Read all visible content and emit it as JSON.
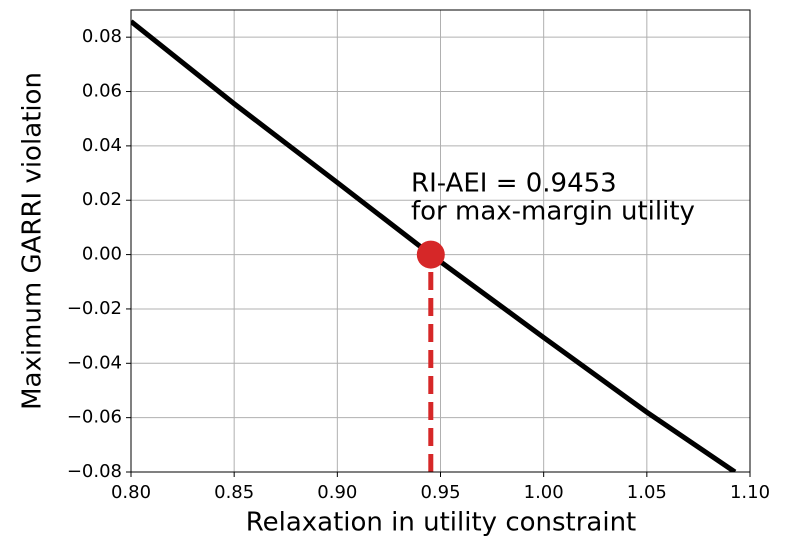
{
  "chart_data": {
    "type": "line",
    "xlabel": "Relaxation in utility constraint",
    "ylabel": "Maximum GARRI violation",
    "annotation": [
      "RI-AEI = 0.9453",
      "for max-margin utility"
    ],
    "x": [
      0.8,
      0.85,
      0.9,
      0.9453,
      1.0,
      1.05,
      1.0927
    ],
    "series": [
      {
        "color": "#000000",
        "values": [
          0.0858,
          0.0555,
          0.0265,
          0,
          -0.0305,
          -0.058,
          -0.08
        ]
      }
    ],
    "marker": {
      "x": 0.9453,
      "y": 0,
      "color": "#d62728"
    },
    "xlim": [
      0.8,
      1.1
    ],
    "ylim": [
      -0.08,
      0.09
    ],
    "xticks": [
      {
        "value": 0.8,
        "label": "0.80"
      },
      {
        "value": 0.85,
        "label": "0.85"
      },
      {
        "value": 0.9,
        "label": "0.90"
      },
      {
        "value": 0.95,
        "label": "0.95"
      },
      {
        "value": 1.0,
        "label": "1.00"
      },
      {
        "value": 1.05,
        "label": "1.05"
      },
      {
        "value": 1.1,
        "label": "1.10"
      }
    ],
    "yticks": [
      {
        "value": -0.08,
        "label": "−0.08"
      },
      {
        "value": -0.06,
        "label": "−0.06"
      },
      {
        "value": -0.04,
        "label": "−0.04"
      },
      {
        "value": -0.02,
        "label": "−0.02"
      },
      {
        "value": 0,
        "label": "0.00"
      },
      {
        "value": 0.02,
        "label": "0.02"
      },
      {
        "value": 0.04,
        "label": "0.04"
      },
      {
        "value": 0.06,
        "label": "0.06"
      },
      {
        "value": 0.08,
        "label": "0.08"
      }
    ],
    "grid": true
  }
}
